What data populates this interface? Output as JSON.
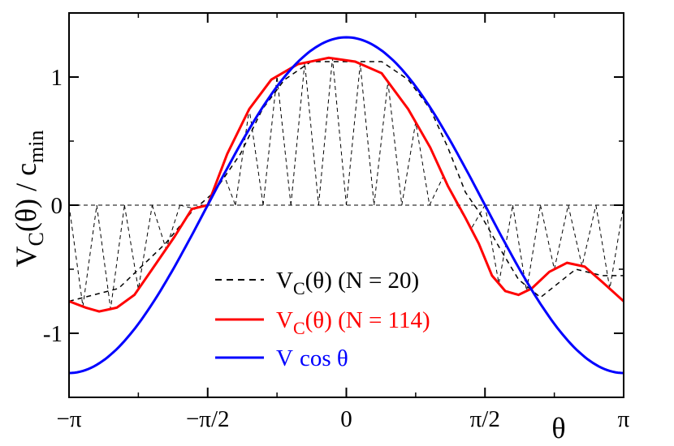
{
  "chart_data": {
    "type": "line",
    "xlabel": "θ",
    "ylabel_main": "V",
    "ylabel_sub": "C",
    "ylabel_rest": "(θ) / c",
    "ylabel_sub2": "min",
    "xlim": [
      -3.14159,
      3.14159
    ],
    "ylim": [
      -1.5,
      1.5
    ],
    "x_ticks": [
      {
        "value": -3.14159,
        "label": "−π"
      },
      {
        "value": -1.5708,
        "label": "−π/2"
      },
      {
        "value": 0,
        "label": "0"
      },
      {
        "value": 1.5708,
        "label": "π/2"
      },
      {
        "value": 3.14159,
        "label": "π"
      }
    ],
    "y_ticks": [
      {
        "value": 1,
        "label": "1"
      },
      {
        "value": 0,
        "label": "0"
      },
      {
        "value": -1,
        "label": "-1"
      }
    ],
    "grid": false,
    "legend_position": "bottom-center",
    "series": [
      {
        "id": "n20",
        "legend_main": "V",
        "legend_sub": "C",
        "legend_rest": "(θ) (N = 20)",
        "color": "#000000",
        "style": "dashed",
        "points": [
          [
            -3.1416,
            -0.75
          ],
          [
            -2.58,
            -0.65
          ],
          [
            -2.05,
            -0.3
          ],
          [
            -1.75,
            -0.05
          ],
          [
            -1.5,
            0.1
          ],
          [
            -1.2,
            0.4
          ],
          [
            -0.95,
            0.75
          ],
          [
            -0.7,
            0.98
          ],
          [
            -0.4,
            1.12
          ],
          [
            0,
            1.12
          ],
          [
            0.4,
            1.12
          ],
          [
            0.7,
            0.98
          ],
          [
            0.95,
            0.75
          ],
          [
            1.15,
            0.45
          ],
          [
            1.35,
            0.1
          ],
          [
            1.5,
            -0.05
          ],
          [
            1.75,
            -0.35
          ],
          [
            1.95,
            -0.58
          ],
          [
            2.2,
            -0.72
          ],
          [
            2.6,
            -0.5
          ],
          [
            2.9,
            -0.55
          ],
          [
            3.1416,
            -0.55
          ]
        ]
      },
      {
        "id": "n114",
        "legend_main": "V",
        "legend_sub": "C",
        "legend_rest": "(θ) (N = 114)",
        "color": "#ff0000",
        "style": "solid",
        "points": [
          [
            -3.1416,
            -0.75
          ],
          [
            -2.95,
            -0.8
          ],
          [
            -2.8,
            -0.83
          ],
          [
            -2.6,
            -0.8
          ],
          [
            -2.4,
            -0.7
          ],
          [
            -2.2,
            -0.5
          ],
          [
            -1.95,
            -0.25
          ],
          [
            -1.75,
            -0.03
          ],
          [
            -1.57,
            0.0
          ],
          [
            -1.35,
            0.4
          ],
          [
            -1.1,
            0.75
          ],
          [
            -0.85,
            0.98
          ],
          [
            -0.55,
            1.1
          ],
          [
            -0.2,
            1.15
          ],
          [
            0.1,
            1.12
          ],
          [
            0.4,
            1.03
          ],
          [
            0.7,
            0.75
          ],
          [
            0.95,
            0.45
          ],
          [
            1.15,
            0.15
          ],
          [
            1.35,
            -0.1
          ],
          [
            1.5,
            -0.3
          ],
          [
            1.65,
            -0.55
          ],
          [
            1.8,
            -0.67
          ],
          [
            1.95,
            -0.7
          ],
          [
            2.1,
            -0.65
          ],
          [
            2.3,
            -0.52
          ],
          [
            2.5,
            -0.45
          ],
          [
            2.7,
            -0.48
          ],
          [
            2.9,
            -0.6
          ],
          [
            3.1416,
            -0.75
          ]
        ]
      },
      {
        "id": "vcos",
        "legend_main": "V",
        "legend_rest": "cos θ",
        "color": "#0000ff",
        "style": "solid",
        "amplitude": 1.31
      }
    ]
  }
}
